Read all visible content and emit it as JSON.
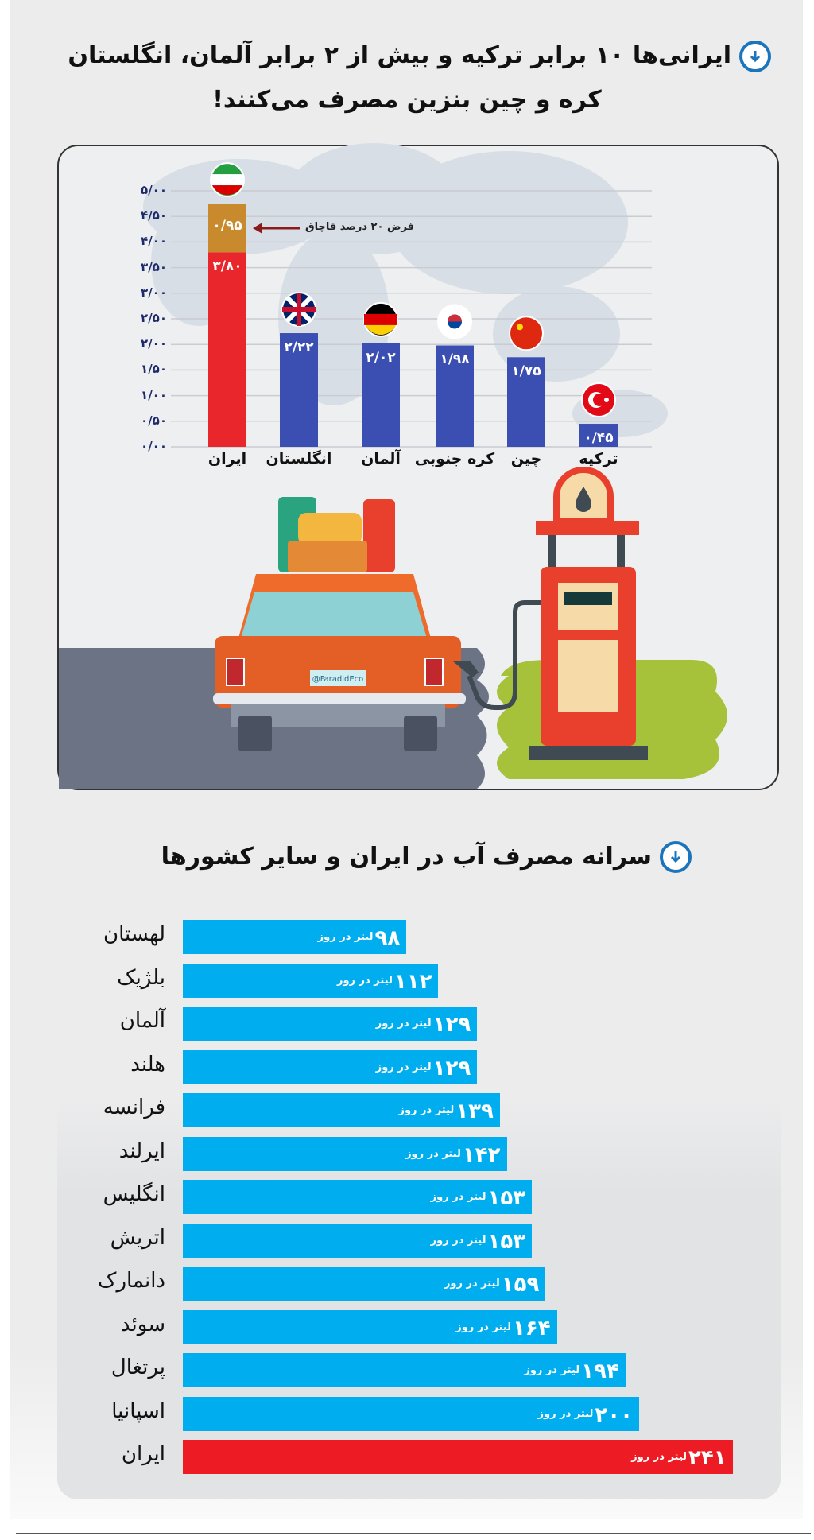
{
  "colors": {
    "accent": "#1b75bc",
    "bar_blue_1": "#3b4fb3",
    "bar_red_1": "#e8262b",
    "bar_orange_1": "#c98a2e",
    "bar_blue_2": "#00aeef",
    "bar_red_2": "#ed1c24"
  },
  "header1": {
    "icon": "circle-down-arrow-icon",
    "line1": "ایرانی‌ها ۱۰ برابر ترکیه و بیش از ۲ برابر آلمان، انگلستان",
    "line2": "کره و چین بنزین مصرف می‌کنند!"
  },
  "header2": {
    "icon": "circle-down-arrow-icon",
    "title": "سرانه مصرف آب در ایران و سایر کشورها"
  },
  "illustration": {
    "watermark": "@FaradidEco",
    "items": [
      "car",
      "luggage",
      "fuel-pump-icon",
      "fuel-drop-icon"
    ]
  },
  "chart_data": [
    {
      "type": "bar",
      "orientation": "vertical",
      "categories": [
        "ایران",
        "انگلستان",
        "آلمان",
        "کره جنوبی",
        "چین",
        "ترکیه"
      ],
      "flags": [
        "iran-flag-icon",
        "uk-flag-icon",
        "germany-flag-icon",
        "south-korea-flag-icon",
        "china-flag-icon",
        "turkey-flag-icon"
      ],
      "series": [
        {
          "values": [
            3.8,
            2.22,
            2.02,
            1.98,
            1.75,
            0.45
          ],
          "value_labels": [
            "۳/۸۰",
            "۲/۲۲",
            "۲/۰۲",
            "۱/۹۸",
            "۱/۷۵",
            "۰/۴۵"
          ]
        },
        {
          "values": [
            0.95,
            0,
            0,
            0,
            0,
            0
          ],
          "value_labels": [
            "۰/۹۵",
            "",
            "",
            "",
            "",
            ""
          ]
        }
      ],
      "stacked": true,
      "annotation": "فرض ۲۰ درصد قاچاق",
      "yticks": [
        0,
        0.5,
        1,
        1.5,
        2,
        2.5,
        3,
        3.5,
        4,
        4.5,
        5
      ],
      "ytick_labels": [
        "۰/۰۰",
        "۰/۵۰",
        "۱/۰۰",
        "۱/۵۰",
        "۲/۰۰",
        "۲/۵۰",
        "۳/۰۰",
        "۳/۵۰",
        "۴/۰۰",
        "۴/۵۰",
        "۵/۰۰"
      ],
      "ylim": [
        0,
        5
      ],
      "grid": true
    },
    {
      "type": "bar",
      "orientation": "horizontal",
      "title": "سرانه مصرف آب در ایران و سایر کشورها",
      "categories": [
        "لهستان",
        "بلژیک",
        "آلمان",
        "هلند",
        "فرانسه",
        "ایرلند",
        "انگلیس",
        "اتریش",
        "دانمارک",
        "سوئد",
        "پرتغال",
        "اسپانیا",
        "ایران"
      ],
      "values": [
        98,
        112,
        129,
        129,
        139,
        142,
        153,
        153,
        159,
        164,
        194,
        200,
        241
      ],
      "value_labels": [
        "۹۸",
        "۱۱۲",
        "۱۲۹",
        "۱۲۹",
        "۱۳۹",
        "۱۴۲",
        "۱۵۳",
        "۱۵۳",
        "۱۵۹",
        "۱۶۴",
        "۱۹۴",
        "۲۰۰",
        "۲۴۱"
      ],
      "unit": "لیتر در روز",
      "highlight": "ایران",
      "grid": false
    }
  ]
}
